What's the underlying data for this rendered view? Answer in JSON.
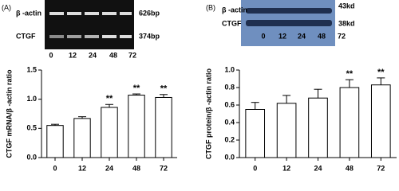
{
  "chart_data": [
    {
      "type": "bar",
      "panel_label": "(A)",
      "blot": {
        "bands": [
          "β -actin",
          "CTGF"
        ],
        "sizes": [
          "626bp",
          "374bp"
        ]
      },
      "ylabel": "CTGF mRNA/β -actin ratio",
      "categories": [
        "0",
        "12",
        "24",
        "48",
        "72"
      ],
      "values": [
        0.55,
        0.67,
        0.86,
        1.07,
        1.03
      ],
      "errors": [
        0.02,
        0.03,
        0.05,
        0.02,
        0.05
      ],
      "significance": [
        null,
        null,
        "**",
        "**",
        "**"
      ],
      "ylim": [
        0,
        1.5
      ],
      "yticks": [
        {
          "value": 0,
          "label": "0.0"
        },
        0.5,
        {
          "value": 1,
          "label": "1.0"
        },
        1.5
      ],
      "color": "#ffffff"
    },
    {
      "type": "bar",
      "panel_label": "(B)",
      "blot": {
        "bands": [
          "β -actin",
          "CTGF"
        ],
        "sizes": [
          "43kd",
          "38kd"
        ]
      },
      "ylabel": "CTGF protein/β -actin ratio",
      "categories": [
        "0",
        "12",
        "24",
        "48",
        "72"
      ],
      "values": [
        0.55,
        0.62,
        0.68,
        0.8,
        0.83
      ],
      "errors": [
        0.08,
        0.09,
        0.1,
        0.09,
        0.08
      ],
      "significance": [
        null,
        null,
        null,
        "**",
        "**"
      ],
      "ylim": [
        0,
        1.0
      ],
      "yticks": [
        {
          "value": 0,
          "label": "0.0"
        },
        0.2,
        0.4,
        0.6,
        0.8,
        {
          "value": 1,
          "label": "1.0"
        }
      ],
      "color": "#ffffff"
    }
  ]
}
